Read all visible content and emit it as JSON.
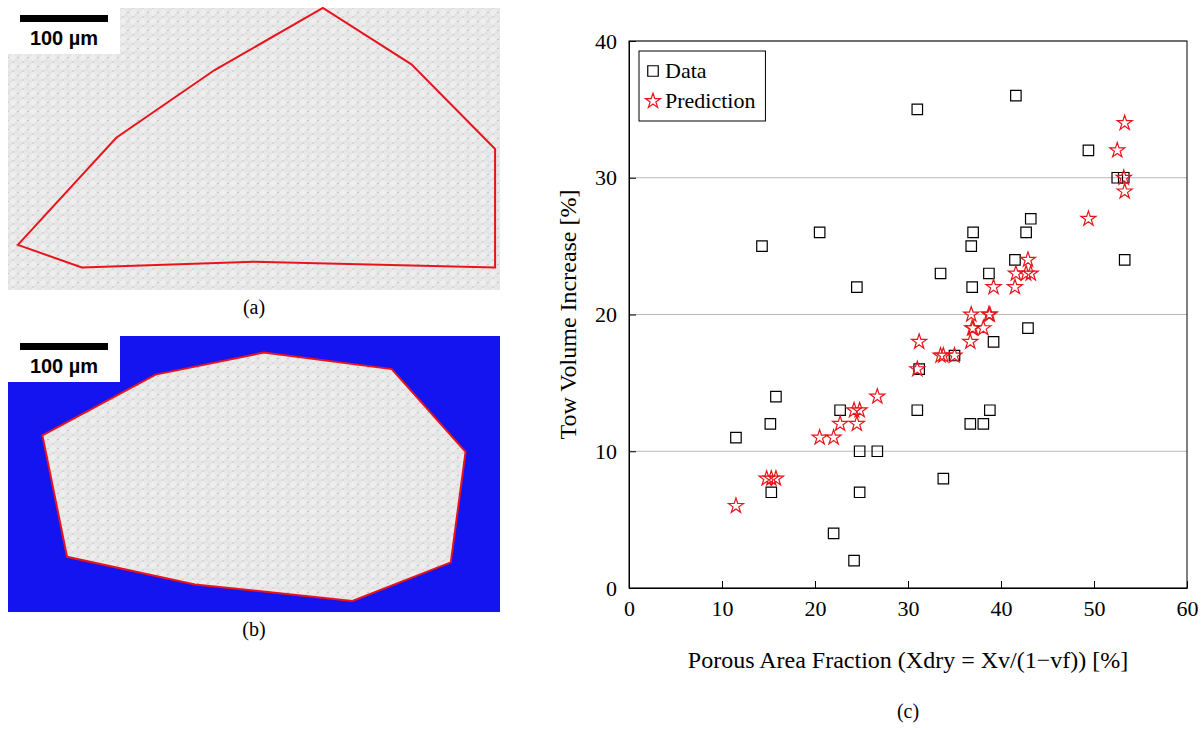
{
  "images": [
    {
      "caption": "(a)",
      "scale_bar": "100 µm"
    },
    {
      "caption": "(b)",
      "scale_bar": "100 µm"
    }
  ],
  "chart_data": {
    "type": "scatter",
    "caption": "(c)",
    "x_label": "Porous Area Fraction (Xdry = Xv/(1−vf)) [%]",
    "y_label": "Tow Volume Increase [%]",
    "xlim": [
      0,
      60
    ],
    "xticks": [
      0,
      10,
      20,
      30,
      40,
      50,
      60
    ],
    "ylim": [
      0,
      40
    ],
    "yticks": [
      0,
      10,
      20,
      30,
      40
    ],
    "grid": true,
    "legend": "upper left",
    "series": [
      {
        "name": "Data",
        "color": "#000000",
        "marker": "square",
        "x": [
          11.5,
          14.3,
          15.2,
          15.3,
          15.8,
          20.5,
          22.0,
          22.7,
          24.2,
          24.5,
          24.8,
          24.8,
          26.7,
          31.0,
          31.0,
          31.2,
          33.5,
          33.8,
          35.0,
          36.7,
          36.8,
          37.0,
          36.9,
          38.1,
          38.7,
          38.8,
          39.2,
          41.5,
          41.6,
          42.7,
          42.9,
          43.2,
          49.4,
          52.5,
          53.2,
          53.3
        ],
        "values": [
          11,
          25,
          12,
          7,
          14,
          26,
          4,
          13,
          2,
          22,
          10,
          7,
          10,
          35,
          13,
          16,
          23,
          8,
          17,
          12,
          25,
          26,
          22,
          12,
          23,
          13,
          18,
          24,
          36,
          26,
          19,
          27,
          32,
          30,
          30,
          24
        ]
      },
      {
        "name": "Prediction",
        "color": "#e8141c",
        "marker": "star",
        "x": [
          11.5,
          14.8,
          15.3,
          15.8,
          20.5,
          22.0,
          22.7,
          24.2,
          24.5,
          24.8,
          26.7,
          31.0,
          31.2,
          33.5,
          33.8,
          35.0,
          36.7,
          36.8,
          37.0,
          36.9,
          38.1,
          38.7,
          38.8,
          39.2,
          41.5,
          41.6,
          42.7,
          42.9,
          43.2,
          49.4,
          52.5,
          53.2,
          53.3,
          53.3
        ],
        "values": [
          6,
          8,
          8,
          8,
          11,
          11,
          12,
          13,
          12,
          13,
          14,
          16,
          18,
          17,
          17,
          17,
          18,
          20,
          19,
          19,
          19,
          20,
          20,
          22,
          22,
          23,
          23,
          24,
          23,
          27,
          32,
          30,
          34,
          29
        ]
      }
    ]
  }
}
